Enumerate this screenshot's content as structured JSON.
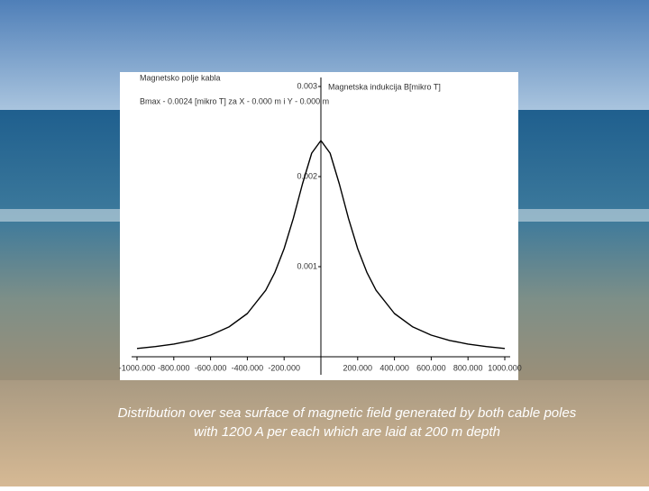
{
  "chart_data": {
    "type": "line",
    "title": "Magnetsko polje kabla",
    "subtitle": "Bmax - 0.0024 [mikro T] za X - 0.000 m i Y - 0.000 m",
    "y_label": "Magnetska indukcija B[mikro T]",
    "x": [
      -1000,
      -900,
      -800,
      -700,
      -600,
      -500,
      -400,
      -300,
      -250,
      -200,
      -150,
      -100,
      -50,
      0,
      50,
      100,
      150,
      200,
      250,
      300,
      400,
      500,
      600,
      700,
      800,
      900,
      1000
    ],
    "values": [
      9.23e-05,
      0.000113,
      0.000141,
      0.000181,
      0.00024,
      0.000331,
      0.00048,
      0.000738,
      0.000937,
      0.0012,
      0.001536,
      0.00192,
      0.00226,
      0.0024,
      0.00226,
      0.00192,
      0.001536,
      0.0012,
      0.000937,
      0.000738,
      0.00048,
      0.000331,
      0.00024,
      0.000181,
      0.000141,
      0.000113,
      9.23e-05
    ],
    "color": "#000000",
    "xlim": [
      -1000,
      1000
    ],
    "xticks": [
      {
        "value": -1000,
        "label": "-1000.000"
      },
      {
        "value": -800,
        "label": "-800.000"
      },
      {
        "value": -600,
        "label": "-600.000"
      },
      {
        "value": -400,
        "label": "-400.000"
      },
      {
        "value": -200,
        "label": "-200.000"
      },
      {
        "value": 200,
        "label": "200.000"
      },
      {
        "value": 400,
        "label": "400.000"
      },
      {
        "value": 600,
        "label": "600.000"
      },
      {
        "value": 800,
        "label": "800.000"
      },
      {
        "value": 1000,
        "label": "1000.000"
      }
    ],
    "ylim": [
      0,
      0.003
    ],
    "yticks": [
      0.001,
      0.002,
      0.003
    ],
    "grid": false,
    "caption": [
      "Distribution over sea surface of magnetic field generated by both cable poles",
      "with    1200 A per each which are laid at 200 m depth"
    ]
  }
}
